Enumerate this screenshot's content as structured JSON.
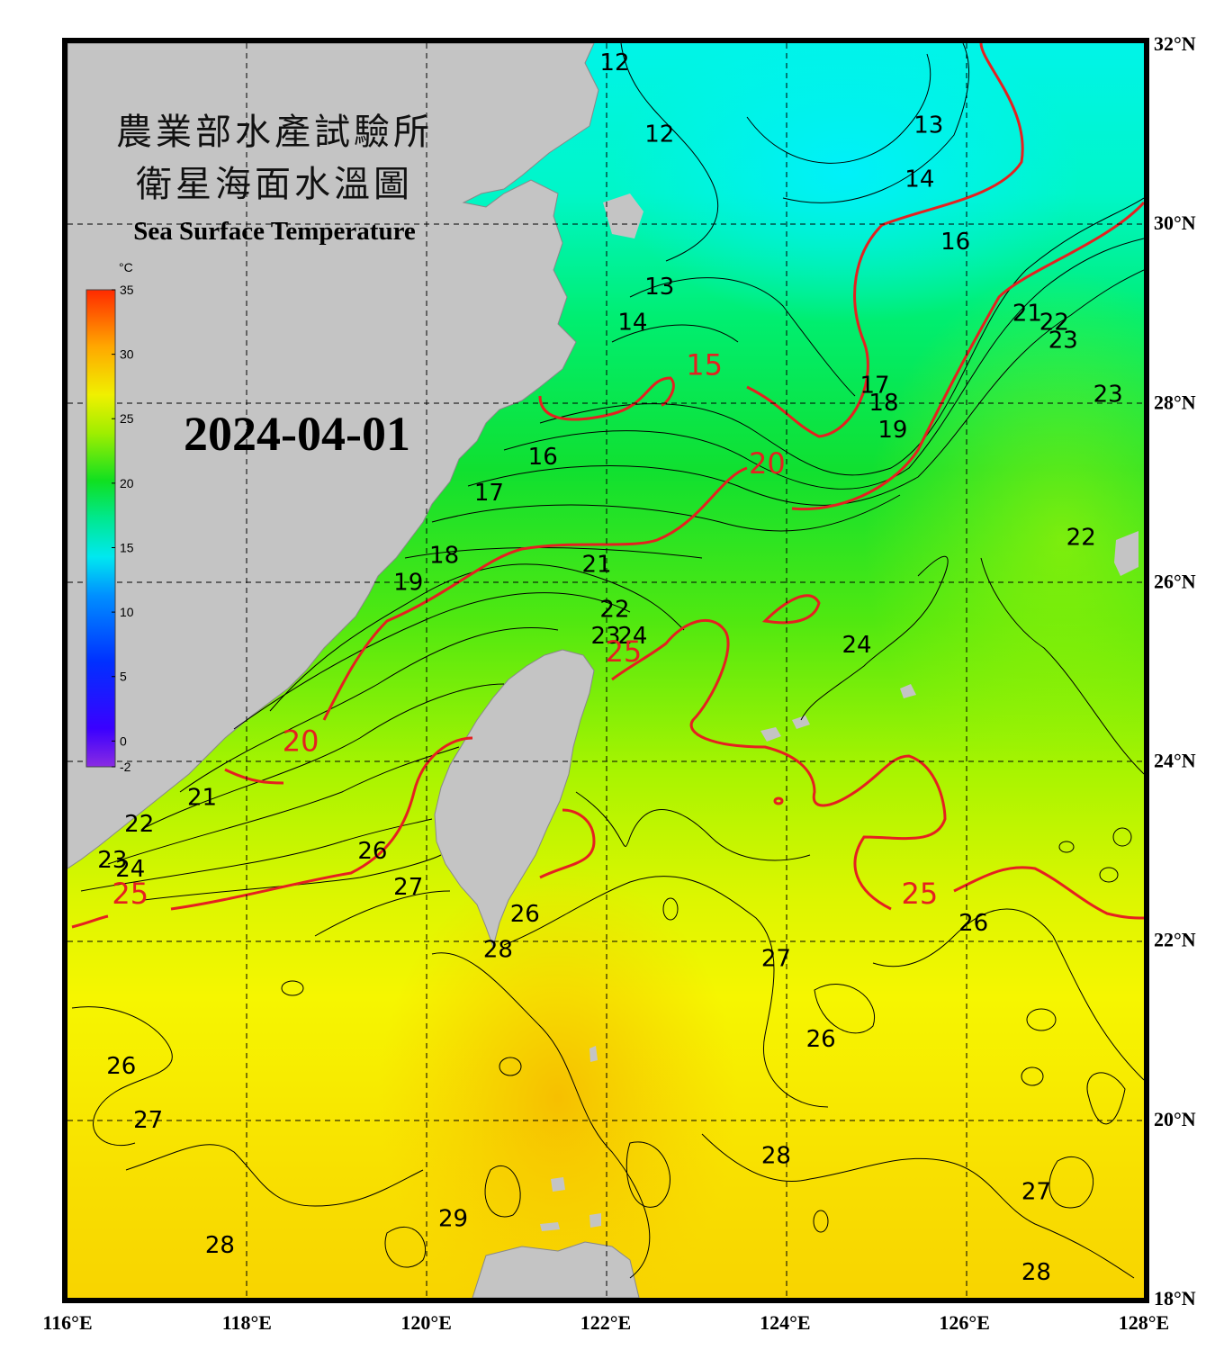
{
  "title_cn_line1": "農業部水產試驗所",
  "title_cn_line2": "衛星海面水溫圖",
  "title_en": "Sea Surface Temperature",
  "date": "2024-04-01",
  "colorbar": {
    "unit": "°C",
    "ticks": [
      "35",
      "30",
      "25",
      "20",
      "15",
      "10",
      "5",
      "0",
      "-2"
    ],
    "min": -2,
    "max": 35
  },
  "lon_labels": [
    "116°E",
    "118°E",
    "120°E",
    "122°E",
    "124°E",
    "126°E",
    "128°E"
  ],
  "lat_labels": [
    "32°N",
    "30°N",
    "28°N",
    "26°N",
    "24°N",
    "22°N",
    "20°N",
    "18°N"
  ],
  "contour_labels": [
    {
      "text": "12",
      "lon": 122.1,
      "lat": 31.7
    },
    {
      "text": "12",
      "lon": 122.6,
      "lat": 30.9
    },
    {
      "text": "13",
      "lon": 125.6,
      "lat": 31.0
    },
    {
      "text": "14",
      "lon": 125.5,
      "lat": 30.4
    },
    {
      "text": "16",
      "lon": 125.9,
      "lat": 29.7
    },
    {
      "text": "13",
      "lon": 122.6,
      "lat": 29.2
    },
    {
      "text": "14",
      "lon": 122.3,
      "lat": 28.8
    },
    {
      "text": "21",
      "lon": 126.7,
      "lat": 28.9
    },
    {
      "text": "22",
      "lon": 127.0,
      "lat": 28.8
    },
    {
      "text": "23",
      "lon": 127.1,
      "lat": 28.6
    },
    {
      "text": "17",
      "lon": 125.0,
      "lat": 28.1
    },
    {
      "text": "18",
      "lon": 125.1,
      "lat": 27.9
    },
    {
      "text": "19",
      "lon": 125.2,
      "lat": 27.6
    },
    {
      "text": "23",
      "lon": 127.6,
      "lat": 28.0
    },
    {
      "text": "16",
      "lon": 121.3,
      "lat": 27.3
    },
    {
      "text": "17",
      "lon": 120.7,
      "lat": 26.9
    },
    {
      "text": "18",
      "lon": 120.2,
      "lat": 26.2
    },
    {
      "text": "19",
      "lon": 119.8,
      "lat": 25.9
    },
    {
      "text": "21",
      "lon": 121.9,
      "lat": 26.1
    },
    {
      "text": "22",
      "lon": 127.3,
      "lat": 26.4
    },
    {
      "text": "22",
      "lon": 122.1,
      "lat": 25.6
    },
    {
      "text": "23",
      "lon": 122.0,
      "lat": 25.3
    },
    {
      "text": "24",
      "lon": 122.3,
      "lat": 25.3
    },
    {
      "text": "24",
      "lon": 124.8,
      "lat": 25.2
    },
    {
      "text": "21",
      "lon": 117.5,
      "lat": 23.5
    },
    {
      "text": "22",
      "lon": 116.8,
      "lat": 23.2
    },
    {
      "text": "23",
      "lon": 116.5,
      "lat": 22.8
    },
    {
      "text": "24",
      "lon": 116.7,
      "lat": 22.7
    },
    {
      "text": "26",
      "lon": 119.4,
      "lat": 22.9
    },
    {
      "text": "27",
      "lon": 119.8,
      "lat": 22.5
    },
    {
      "text": "26",
      "lon": 121.1,
      "lat": 22.2
    },
    {
      "text": "28",
      "lon": 120.8,
      "lat": 21.8
    },
    {
      "text": "26",
      "lon": 126.1,
      "lat": 22.1
    },
    {
      "text": "27",
      "lon": 123.9,
      "lat": 21.7
    },
    {
      "text": "26",
      "lon": 124.4,
      "lat": 20.8
    },
    {
      "text": "26",
      "lon": 116.6,
      "lat": 20.5
    },
    {
      "text": "27",
      "lon": 116.9,
      "lat": 19.9
    },
    {
      "text": "28",
      "lon": 123.9,
      "lat": 19.5
    },
    {
      "text": "27",
      "lon": 126.8,
      "lat": 19.1
    },
    {
      "text": "29",
      "lon": 120.3,
      "lat": 18.8
    },
    {
      "text": "28",
      "lon": 117.7,
      "lat": 18.5
    },
    {
      "text": "28",
      "lon": 126.8,
      "lat": 18.2
    }
  ],
  "red_contour_labels": [
    {
      "text": "15",
      "lon": 123.1,
      "lat": 28.3
    },
    {
      "text": "20",
      "lon": 123.8,
      "lat": 27.2
    },
    {
      "text": "25",
      "lon": 122.2,
      "lat": 25.1
    },
    {
      "text": "20",
      "lon": 118.6,
      "lat": 24.1
    },
    {
      "text": "25",
      "lon": 116.7,
      "lat": 22.4
    },
    {
      "text": "25",
      "lon": 125.5,
      "lat": 22.4
    }
  ],
  "colors": {
    "land": "#c4c4c4",
    "red_isotherm": "#e52020",
    "frame": "#000000"
  }
}
